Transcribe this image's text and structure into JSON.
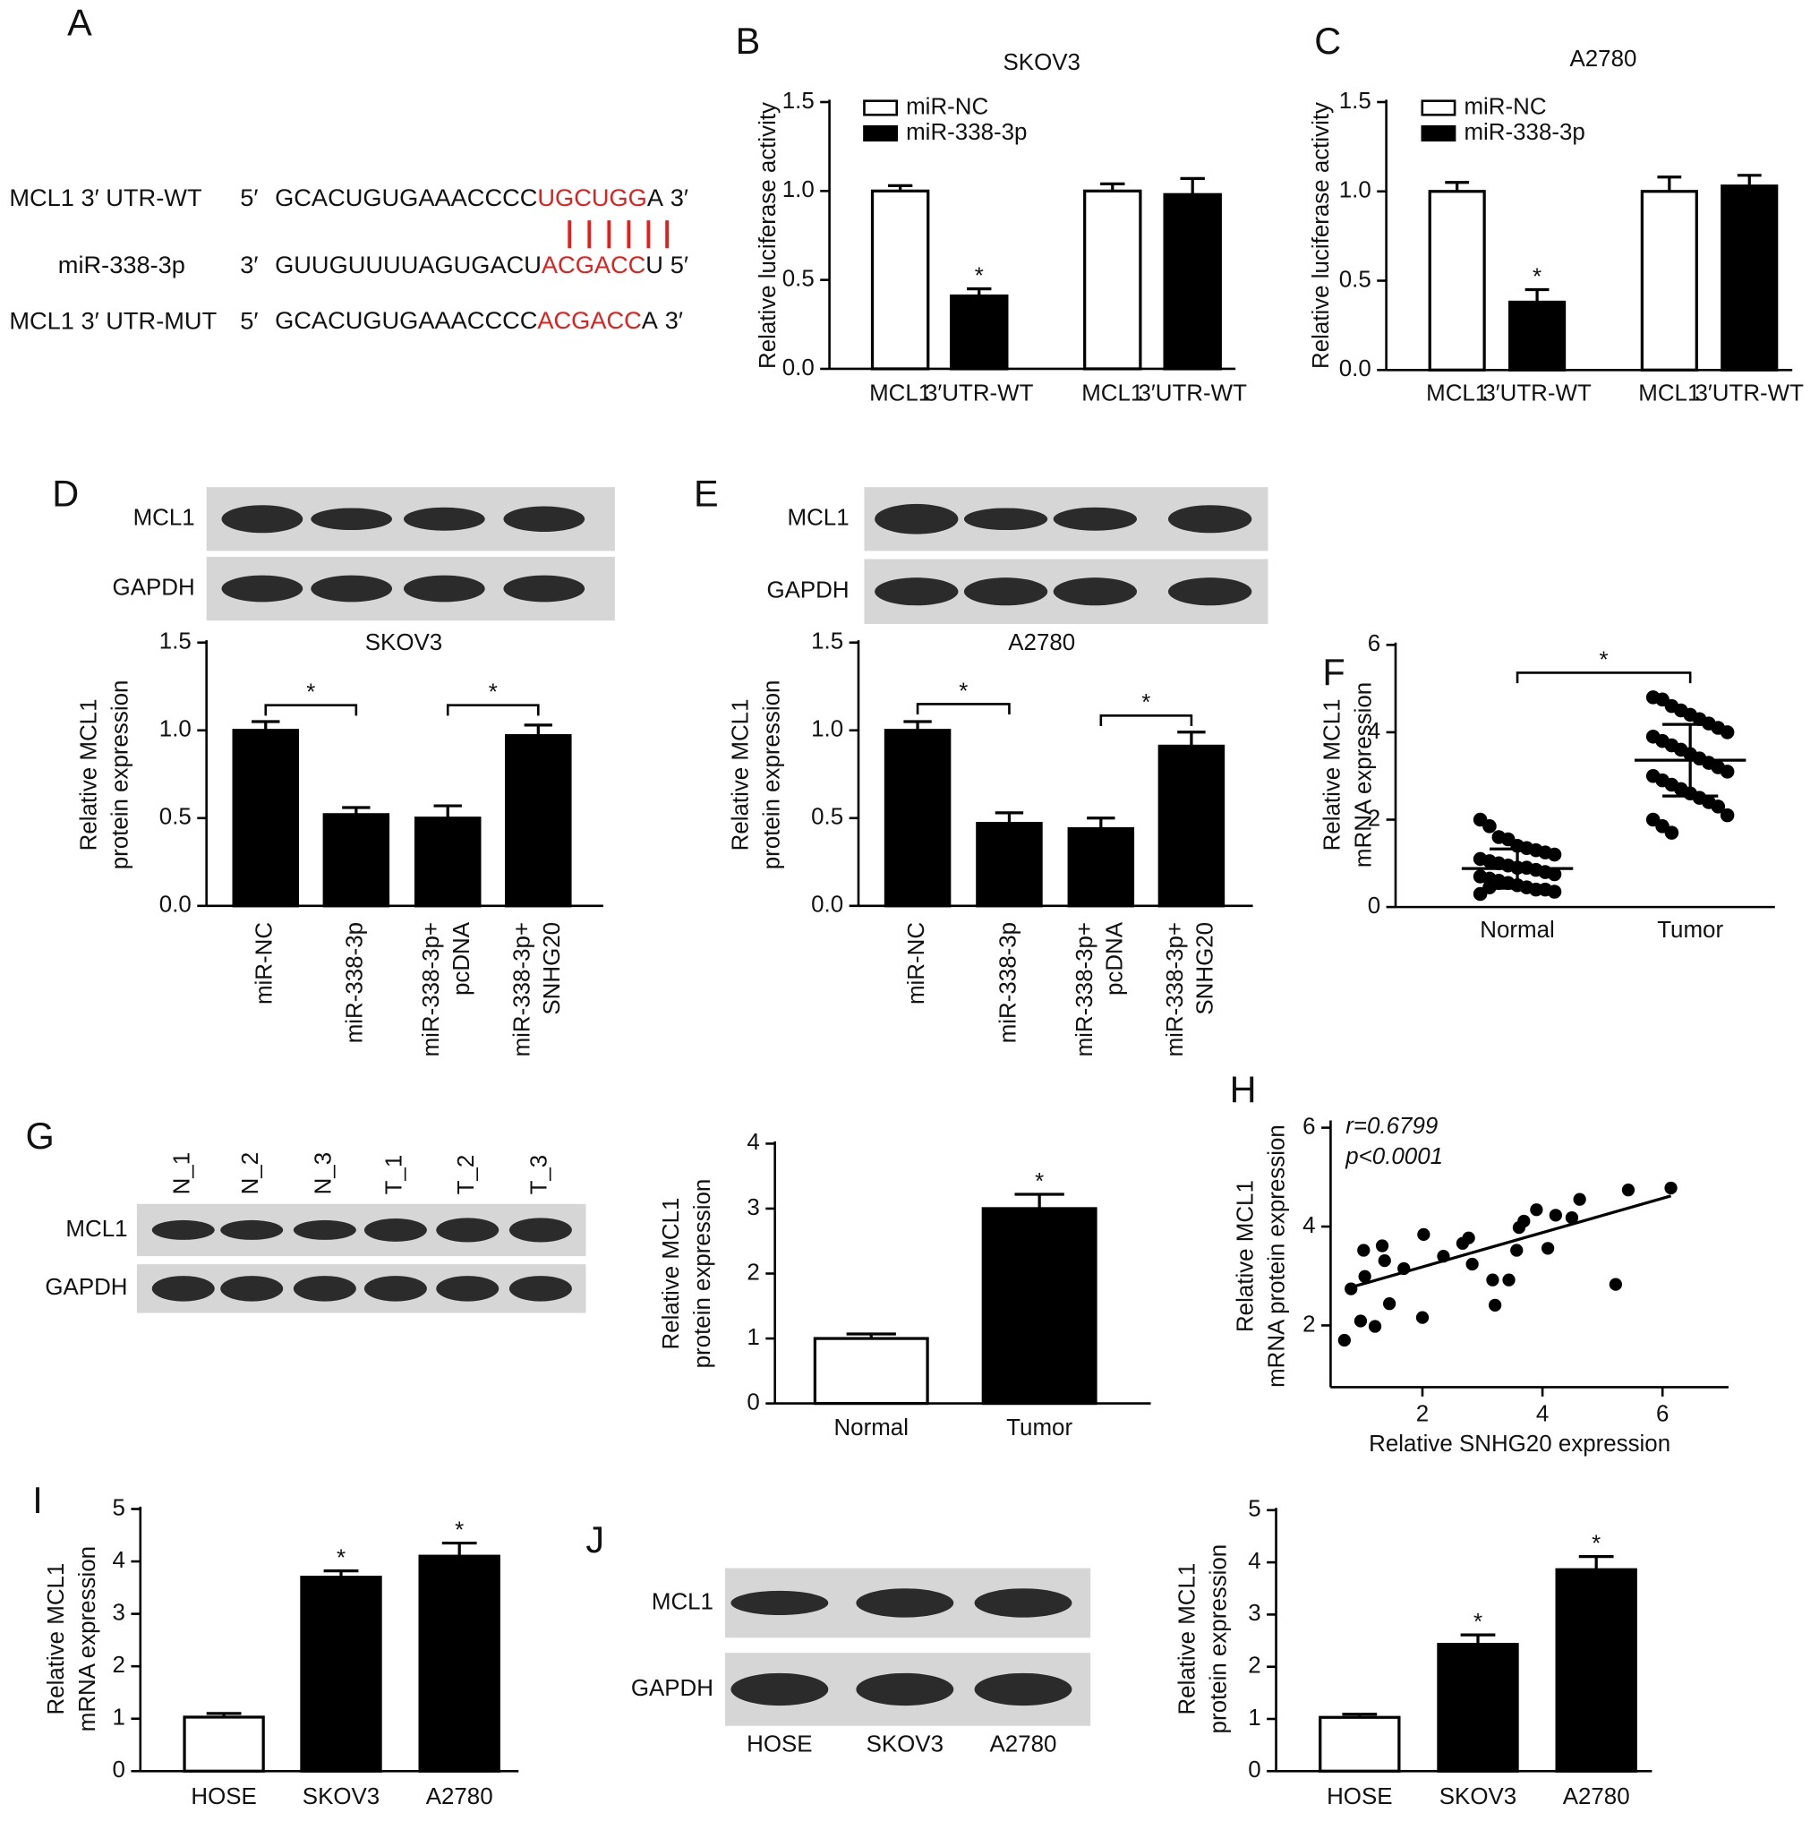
{
  "panels": [
    "A",
    "B",
    "C",
    "D",
    "E",
    "F",
    "G",
    "H",
    "I",
    "J"
  ],
  "sequence": {
    "rows": [
      {
        "name": "MCL1 3′  UTR-WT",
        "end5": "5′",
        "seq": "GCACUGUGAAACCCC",
        "site": "UGCUGG",
        "tail": "A",
        "end3": "3′"
      },
      {
        "name": "miR-338-3p",
        "end5": "3′",
        "seq": "GUUGUUUUAGUGACU",
        "site": "ACGACC",
        "tail": "U",
        "end3": "5′"
      },
      {
        "name": "MCL1 3′ UTR-MUT",
        "end5": "5′",
        "seq": "GCACUGUGAAACCCC",
        "site": "ACGACC",
        "tail": "A",
        "end3": "3′"
      }
    ]
  },
  "blots": [
    {
      "rows": [
        "MCL1",
        "GAPDH"
      ]
    },
    {
      "rows": [
        "MCL1",
        "GAPDH"
      ]
    },
    {
      "rows": [
        "MCL1",
        "GAPDH"
      ],
      "lanes": [
        "N_1",
        "N_2",
        "N_3",
        "T_1",
        "T_2",
        "T_3"
      ]
    },
    {
      "rows": [
        "MCL1",
        "GAPDH"
      ],
      "lanes": [
        "HOSE",
        "SKOV3",
        "A2780"
      ]
    }
  ],
  "chart_data": [
    {
      "type": "bar",
      "title": "SKOV3",
      "ylabel": "Relative luciferase activity",
      "categories": [
        "MCL1",
        "3′UTR-WT",
        "MCL1",
        "3′UTR-WT"
      ],
      "series": [
        {
          "name": "miR-NC",
          "color": "#ffffff",
          "values": [
            1.0,
            null,
            1.0,
            null
          ],
          "errors": [
            0.03,
            null,
            0.04,
            null
          ],
          "labels": [
            null,
            null,
            null,
            null
          ]
        },
        {
          "name": "miR-338-3p",
          "color": "#000000",
          "values": [
            null,
            0.41,
            null,
            0.98
          ],
          "errors": [
            null,
            0.04,
            null,
            0.09
          ],
          "labels": [
            null,
            "*",
            null,
            null
          ]
        }
      ],
      "ylim": [
        0,
        1.5
      ],
      "yticks": [
        {
          "value": 0,
          "label": "0.0"
        },
        0.5,
        {
          "value": 1,
          "label": "1.0"
        },
        1.5
      ],
      "legend": "upper left"
    },
    {
      "type": "bar",
      "title": "A2780",
      "ylabel": "Relative luciferase activity",
      "categories": [
        "MCL1",
        "3′UTR-WT",
        "MCL1",
        "3′UTR-WT"
      ],
      "series": [
        {
          "name": "miR-NC",
          "color": "#ffffff",
          "values": [
            1.0,
            null,
            1.0,
            null
          ],
          "errors": [
            0.05,
            null,
            0.08,
            null
          ],
          "labels": [
            null,
            null,
            null,
            null
          ]
        },
        {
          "name": "miR-338-3p",
          "color": "#000000",
          "values": [
            null,
            0.38,
            null,
            1.03
          ],
          "errors": [
            null,
            0.07,
            null,
            0.06
          ],
          "labels": [
            null,
            "*",
            null,
            null
          ]
        }
      ],
      "ylim": [
        0,
        1.5
      ],
      "yticks": [
        {
          "value": 0,
          "label": "0.0"
        },
        0.5,
        {
          "value": 1,
          "label": "1.0"
        },
        1.5
      ],
      "legend": "upper left"
    },
    {
      "type": "bar",
      "title": "SKOV3",
      "ylabel": [
        "Relative MCL1",
        "protein expression"
      ],
      "categories": [
        [
          "miR-NC"
        ],
        [
          "miR-338-3p"
        ],
        [
          "miR-338-3p+",
          "pcDNA"
        ],
        [
          "miR-338-3p+",
          "SNHG20"
        ]
      ],
      "series": [
        {
          "color": "#000000",
          "values": [
            1.0,
            0.52,
            0.5,
            0.97
          ],
          "errors": [
            0.05,
            0.04,
            0.07,
            0.06
          ]
        }
      ],
      "brackets": [
        {
          "between": [
            0,
            1
          ],
          "label": "*"
        },
        {
          "between": [
            2,
            3
          ],
          "label": "*"
        }
      ],
      "ylim": [
        0,
        1.5
      ],
      "yticks": [
        {
          "value": 0,
          "label": "0.0"
        },
        0.5,
        {
          "value": 1,
          "label": "1.0"
        },
        1.5
      ]
    },
    {
      "type": "bar",
      "title": "A2780",
      "ylabel": [
        "Relative MCL1",
        "protein expression"
      ],
      "categories": [
        [
          "miR-NC"
        ],
        [
          "miR-338-3p"
        ],
        [
          "miR-338-3p+",
          "pcDNA"
        ],
        [
          "miR-338-3p+",
          "SNHG20"
        ]
      ],
      "series": [
        {
          "color": "#000000",
          "values": [
            1.0,
            0.47,
            0.44,
            0.91
          ],
          "errors": [
            0.05,
            0.06,
            0.06,
            0.08
          ]
        }
      ],
      "brackets": [
        {
          "between": [
            0,
            1
          ],
          "label": "*"
        },
        {
          "between": [
            2,
            3
          ],
          "label": "*"
        }
      ],
      "ylim": [
        0,
        1.5
      ],
      "yticks": [
        {
          "value": 0,
          "label": "0.0"
        },
        0.5,
        {
          "value": 1,
          "label": "1.0"
        },
        1.5
      ]
    },
    {
      "type": "dot",
      "ylabel": [
        "Relative MCL1",
        "mRNA expression"
      ],
      "categories": [
        "Normal",
        "Tumor"
      ],
      "points": [
        [
          2.0,
          1.85,
          1.6,
          1.55,
          1.4,
          1.35,
          1.3,
          1.25,
          1.2,
          1.1,
          1.05,
          1.0,
          0.95,
          0.9,
          0.9,
          0.85,
          0.8,
          0.75,
          0.7,
          0.65,
          0.6,
          0.55,
          0.5,
          0.45,
          0.4,
          0.4,
          0.35,
          0.3,
          0.45,
          0.55
        ],
        [
          4.8,
          4.75,
          4.6,
          4.5,
          4.4,
          4.3,
          4.2,
          4.1,
          4.0,
          3.9,
          3.8,
          3.7,
          3.6,
          3.5,
          3.4,
          3.3,
          3.2,
          3.1,
          3.0,
          2.9,
          2.8,
          2.7,
          2.6,
          2.5,
          2.4,
          2.3,
          2.1,
          2.0,
          1.85,
          1.7
        ]
      ],
      "means": [
        0.88,
        3.36
      ],
      "sd": [
        0.45,
        0.82
      ],
      "brackets": [
        {
          "between": [
            0,
            1
          ],
          "label": "*"
        }
      ],
      "ylim": [
        0,
        6
      ],
      "yticks": [
        0,
        2,
        4,
        6
      ]
    },
    {
      "type": "bar",
      "ylabel": [
        "Relative MCL1",
        "protein expression"
      ],
      "categories": [
        "Normal",
        "Tumor"
      ],
      "series": [
        {
          "colors": [
            "#ffffff",
            "#000000"
          ],
          "values": [
            1.0,
            3.0
          ],
          "errors": [
            0.07,
            0.22
          ],
          "labels": [
            null,
            "*"
          ]
        }
      ],
      "ylim": [
        0,
        4
      ],
      "yticks": [
        0,
        1,
        2,
        3,
        4
      ]
    },
    {
      "type": "scatter",
      "xlabel": "Relative SNHG20 expression",
      "ylabel": [
        "Relative MCL1",
        "mRNA protein expression"
      ],
      "annotations": [
        "r=0.6799",
        "p<0.0001"
      ],
      "x": [
        0.7,
        0.81,
        0.97,
        1.02,
        1.04,
        1.21,
        1.33,
        1.37,
        1.45,
        1.69,
        2.0,
        2.02,
        2.35,
        2.67,
        2.77,
        2.83,
        3.17,
        3.21,
        3.44,
        3.57,
        3.61,
        3.69,
        3.9,
        4.09,
        4.22,
        4.49,
        4.62,
        5.22,
        5.43,
        6.14
      ],
      "y": [
        1.7,
        2.74,
        2.09,
        3.52,
        2.99,
        1.98,
        3.61,
        3.31,
        2.44,
        3.15,
        2.16,
        3.84,
        3.4,
        3.66,
        3.77,
        3.24,
        2.92,
        2.41,
        2.92,
        3.52,
        3.98,
        4.11,
        4.34,
        3.56,
        4.23,
        4.18,
        4.55,
        2.83,
        4.74,
        4.78
      ],
      "fit": {
        "slope": 0.347,
        "intercept": 2.49,
        "x": [
          0.72,
          6.14
        ]
      },
      "xlim": [
        0.47,
        7.1
      ],
      "xticks": [
        2,
        4,
        6
      ],
      "ylim": [
        0.75,
        6.1
      ],
      "yticks": [
        2,
        4,
        6
      ]
    },
    {
      "type": "bar",
      "ylabel": [
        "Relative MCL1",
        "mRNA expression"
      ],
      "categories": [
        "HOSE",
        "SKOV3",
        "A2780"
      ],
      "series": [
        {
          "colors": [
            "#ffffff",
            "#000000",
            "#000000"
          ],
          "values": [
            1.03,
            3.7,
            4.1
          ],
          "errors": [
            0.07,
            0.12,
            0.25
          ],
          "labels": [
            null,
            "*",
            "*"
          ]
        }
      ],
      "ylim": [
        0,
        5
      ],
      "yticks": [
        0,
        1,
        2,
        3,
        4,
        5
      ]
    },
    {
      "type": "bar",
      "ylabel": [
        "Relative MCL1",
        "protein expression"
      ],
      "categories": [
        "HOSE",
        "SKOV3",
        "A2780"
      ],
      "series": [
        {
          "colors": [
            "#ffffff",
            "#000000",
            "#000000"
          ],
          "values": [
            1.03,
            2.43,
            3.86
          ],
          "errors": [
            0.06,
            0.18,
            0.25
          ],
          "labels": [
            null,
            "*",
            "*"
          ]
        }
      ],
      "ylim": [
        0,
        5
      ],
      "yticks": [
        0,
        1,
        2,
        3,
        4,
        5
      ]
    }
  ]
}
